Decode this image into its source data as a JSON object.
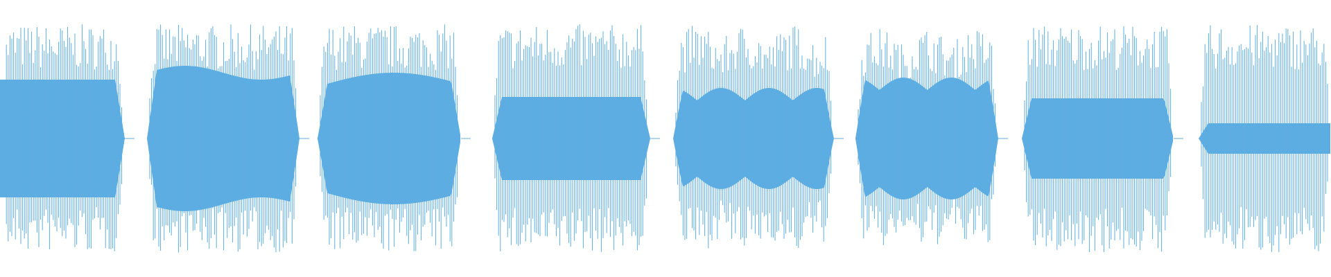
{
  "waveform": {
    "color": "#5dade2",
    "segment_count": 8
  }
}
